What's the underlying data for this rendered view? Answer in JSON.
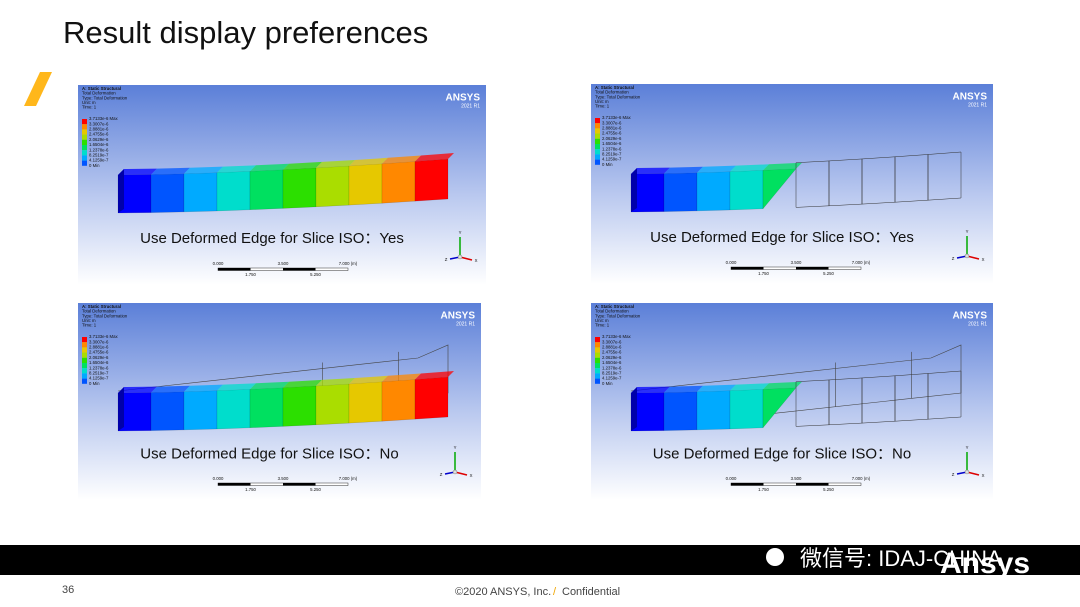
{
  "header": {
    "title": "Result display preferences"
  },
  "panels": [
    {
      "caption": "Use Deformed Edge for Slice ISO：Yes"
    },
    {
      "caption": "Use Deformed Edge for Slice ISO：Yes"
    },
    {
      "caption": "Use Deformed Edge for Slice ISO：No"
    },
    {
      "caption": "Use Deformed Edge for Slice ISO：No"
    }
  ],
  "result_info": {
    "lines": [
      "A: Static Structural",
      "Total Deformation",
      "Type: Total Deformation",
      "Unit: m",
      "Time: 1"
    ],
    "legend": [
      "3.7133e-6 Max",
      "3.3007e-6",
      "2.8881e-6",
      "2.4755e-6",
      "2.0629e-6",
      "1.6504e-6",
      "1.2378e-6",
      "8.2519e-7",
      "4.1259e-7",
      "0 Min"
    ],
    "logo": "ANSYS",
    "version": "2021 R1",
    "scale_top": [
      "0.000",
      "3.500",
      "7.000 (m)"
    ],
    "scale_bottom": [
      "1.750",
      "5.250"
    ],
    "triad": [
      "Y",
      "X",
      "Z"
    ]
  },
  "footer": {
    "page": "36",
    "copyright": "©2020 ANSYS, Inc.",
    "separator": "/",
    "confidential": "Confidential"
  },
  "watermark": {
    "wechat": "微信号: IDAJ-CHINA",
    "brand": "Ansys"
  }
}
